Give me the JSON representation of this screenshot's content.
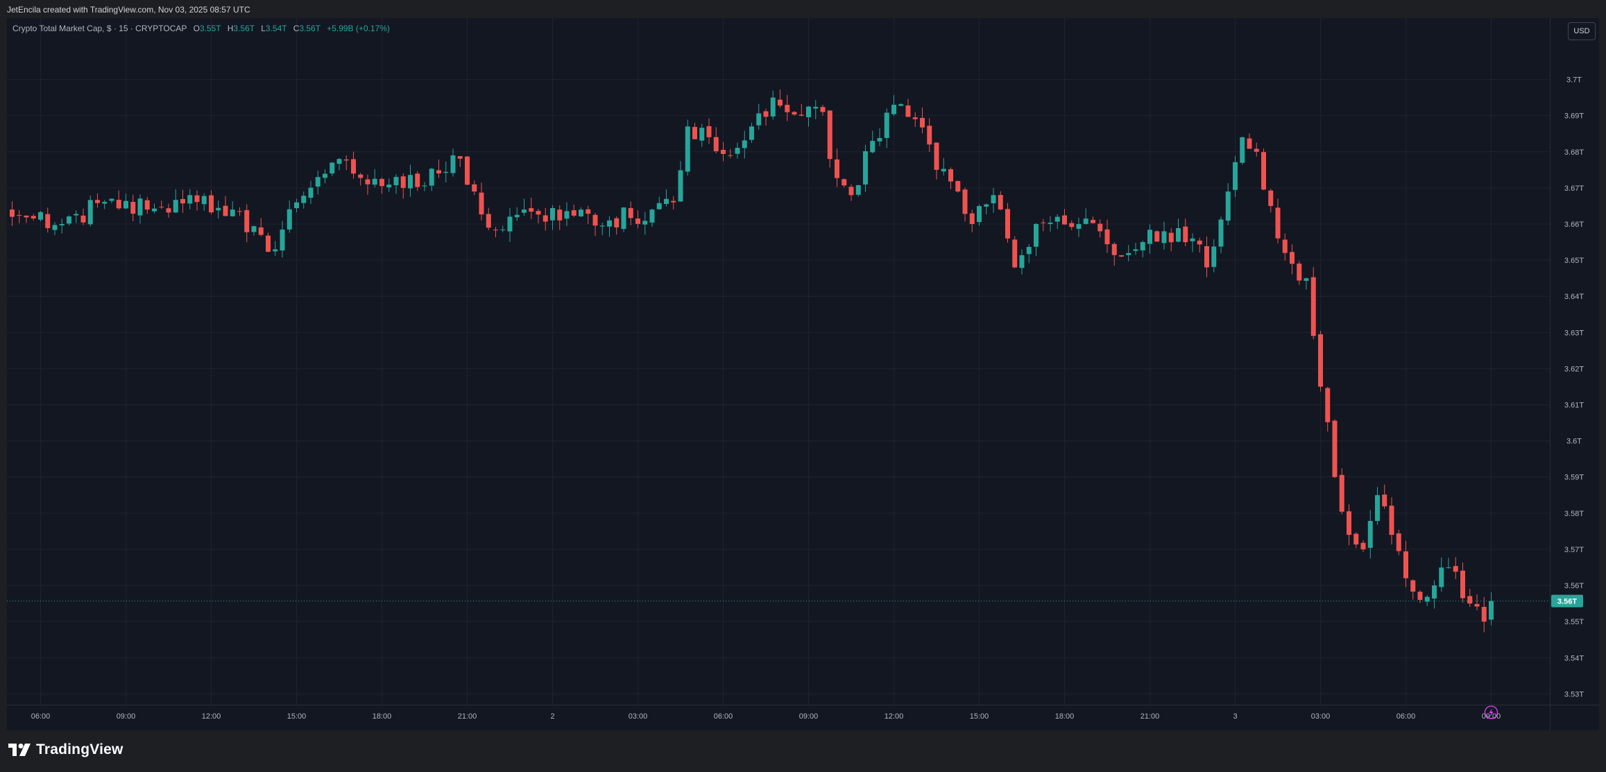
{
  "attribution": "JetEncila created with TradingView.com, Nov 03, 2025 08:57 UTC",
  "legend": {
    "symbol": "Crypto Total Market Cap, $ · 15 · CRYPTOCAP",
    "o_label": "O",
    "o_value": "3.55T",
    "h_label": "H",
    "h_value": "3.56T",
    "l_label": "L",
    "l_value": "3.54T",
    "c_label": "C",
    "c_value": "3.56T",
    "change": "+5.99B (+0.17%)"
  },
  "currency_button": "USD",
  "brand": "TradingView",
  "colors": {
    "up": "#26a69a",
    "down": "#ef5350",
    "background": "#131722",
    "grid": "#1f2330",
    "axis_text": "#b2b5be"
  },
  "icons": {
    "brand_logo": "tradingview-logo-icon",
    "realtime": "lightning-icon"
  },
  "chart_data": {
    "type": "candlestick",
    "title": "Crypto Total Market Cap, $ · 15 · CRYPTOCAP",
    "interval": "15",
    "ylim": [
      3.527,
      3.717
    ],
    "y_ticks": [
      3.53,
      3.54,
      3.55,
      3.56,
      3.57,
      3.58,
      3.59,
      3.6,
      3.61,
      3.62,
      3.63,
      3.64,
      3.65,
      3.66,
      3.67,
      3.68,
      3.69,
      3.7
    ],
    "y_tick_labels": [
      "3.53T",
      "3.54T",
      "3.55T",
      "3.56T",
      "3.57T",
      "3.58T",
      "3.59T",
      "3.6T",
      "3.61T",
      "3.62T",
      "3.63T",
      "3.64T",
      "3.65T",
      "3.66T",
      "3.67T",
      "3.68T",
      "3.69T",
      "3.7T"
    ],
    "x_tick_labels": [
      "06:00",
      "09:00",
      "12:00",
      "15:00",
      "18:00",
      "21:00",
      "2",
      "03:00",
      "06:00",
      "09:00",
      "12:00",
      "15:00",
      "18:00",
      "21:00",
      "3",
      "03:00",
      "06:00",
      "09:00"
    ],
    "x_ticks_bars": [
      4,
      16,
      28,
      40,
      52,
      64,
      76,
      88,
      100,
      112,
      124,
      136,
      148,
      160,
      172,
      184,
      196,
      208
    ],
    "last_price": 3.5557,
    "last_price_label": "3.56T",
    "anchors": [
      [
        0,
        3.662
      ],
      [
        7,
        3.66
      ],
      [
        14,
        3.667
      ],
      [
        19,
        3.664
      ],
      [
        25,
        3.668
      ],
      [
        31,
        3.664
      ],
      [
        35,
        3.657
      ],
      [
        37,
        3.653
      ],
      [
        40,
        3.666
      ],
      [
        43,
        3.673
      ],
      [
        46,
        3.678
      ],
      [
        50,
        3.671
      ],
      [
        55,
        3.67
      ],
      [
        60,
        3.674
      ],
      [
        62,
        3.679
      ],
      [
        65,
        3.669
      ],
      [
        67,
        3.659
      ],
      [
        72,
        3.664
      ],
      [
        77,
        3.661
      ],
      [
        84,
        3.661
      ],
      [
        90,
        3.664
      ],
      [
        93,
        3.666
      ],
      [
        95,
        3.687
      ],
      [
        101,
        3.679
      ],
      [
        104,
        3.687
      ],
      [
        107,
        3.695
      ],
      [
        111,
        3.69
      ],
      [
        114,
        3.691
      ],
      [
        115,
        3.678
      ],
      [
        118,
        3.668
      ],
      [
        121,
        3.683
      ],
      [
        124,
        3.693
      ],
      [
        127,
        3.689
      ],
      [
        130,
        3.675
      ],
      [
        133,
        3.669
      ],
      [
        135,
        3.66
      ],
      [
        138,
        3.668
      ],
      [
        140,
        3.656
      ],
      [
        141,
        3.648
      ],
      [
        144,
        3.66
      ],
      [
        147,
        3.662
      ],
      [
        150,
        3.66
      ],
      [
        153,
        3.658
      ],
      [
        156,
        3.651
      ],
      [
        159,
        3.655
      ],
      [
        162,
        3.658
      ],
      [
        166,
        3.656
      ],
      [
        168,
        3.648
      ],
      [
        171,
        3.669
      ],
      [
        173,
        3.684
      ],
      [
        175,
        3.68
      ],
      [
        177,
        3.665
      ],
      [
        179,
        3.652
      ],
      [
        182,
        3.645
      ],
      [
        184,
        3.615
      ],
      [
        186,
        3.59
      ],
      [
        188,
        3.574
      ],
      [
        190,
        3.57
      ],
      [
        192,
        3.585
      ],
      [
        194,
        3.574
      ],
      [
        196,
        3.562
      ],
      [
        198,
        3.556
      ],
      [
        200,
        3.56
      ],
      [
        202,
        3.565
      ],
      [
        205,
        3.555
      ],
      [
        207,
        3.55
      ],
      [
        208,
        3.5557
      ]
    ]
  }
}
